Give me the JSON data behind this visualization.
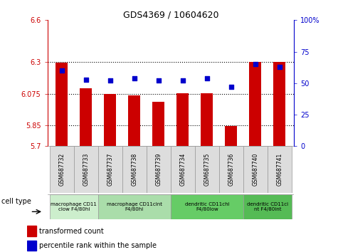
{
  "title": "GDS4369 / 10604620",
  "samples": [
    "GSM687732",
    "GSM687733",
    "GSM687737",
    "GSM687738",
    "GSM687739",
    "GSM687734",
    "GSM687735",
    "GSM687736",
    "GSM687740",
    "GSM687741"
  ],
  "red_values": [
    6.295,
    6.115,
    6.075,
    6.065,
    6.015,
    6.08,
    6.08,
    5.845,
    6.3,
    6.3
  ],
  "blue_values": [
    60,
    53,
    52,
    54,
    52,
    52,
    54,
    47,
    65,
    63
  ],
  "ylim": [
    5.7,
    6.6
  ],
  "y2lim": [
    0,
    100
  ],
  "yticks": [
    5.7,
    5.85,
    6.075,
    6.3,
    6.6
  ],
  "ytick_labels": [
    "5.7",
    "5.85",
    "6.075",
    "6.3",
    "6.6"
  ],
  "y2ticks": [
    0,
    25,
    50,
    75,
    100
  ],
  "y2tick_labels": [
    "0",
    "25",
    "50",
    "75",
    "100%"
  ],
  "hlines": [
    5.85,
    6.075,
    6.3
  ],
  "red_color": "#cc0000",
  "blue_color": "#0000cc",
  "bar_width": 0.5,
  "cell_groups": [
    {
      "label": "macrophage CD11\nclow F4/80hi",
      "start": 0,
      "end": 2,
      "color": "#cceecc"
    },
    {
      "label": "macrophage CD11cint\nF4/80hi",
      "start": 2,
      "end": 5,
      "color": "#aaddaa"
    },
    {
      "label": "dendritic CD11chi\nF4/80low",
      "start": 5,
      "end": 8,
      "color": "#66cc66"
    },
    {
      "label": "dendritic CD11ci\nnt F4/80int",
      "start": 8,
      "end": 10,
      "color": "#55bb55"
    }
  ],
  "legend_red": "transformed count",
  "legend_blue": "percentile rank within the sample",
  "cell_type_label": "cell type",
  "red_color_legend": "#cc0000",
  "blue_color_legend": "#0000cc"
}
